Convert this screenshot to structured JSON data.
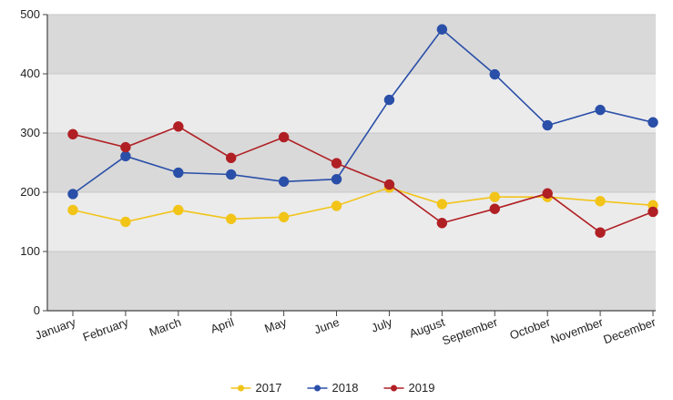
{
  "chart_data": {
    "type": "line",
    "categories": [
      "January",
      "February",
      "March",
      "April",
      "May",
      "June",
      "July",
      "August",
      "September",
      "October",
      "November",
      "December"
    ],
    "series": [
      {
        "name": "2017",
        "color": "#f2c418",
        "values": [
          170,
          150,
          170,
          155,
          158,
          177,
          208,
          180,
          192,
          192,
          185,
          178
        ]
      },
      {
        "name": "2018",
        "color": "#2a4fa8",
        "values": [
          197,
          261,
          233,
          230,
          218,
          222,
          356,
          475,
          399,
          313,
          339,
          318
        ]
      },
      {
        "name": "2019",
        "color": "#b01f24",
        "values": [
          298,
          276,
          311,
          258,
          293,
          249,
          213,
          148,
          172,
          198,
          132,
          167
        ]
      }
    ],
    "ylim": [
      0,
      500
    ],
    "yticks": [
      0,
      100,
      200,
      300,
      400,
      500
    ],
    "grid": true,
    "legend_position": "bottom-center",
    "title": "",
    "xlabel": "",
    "ylabel": ""
  }
}
